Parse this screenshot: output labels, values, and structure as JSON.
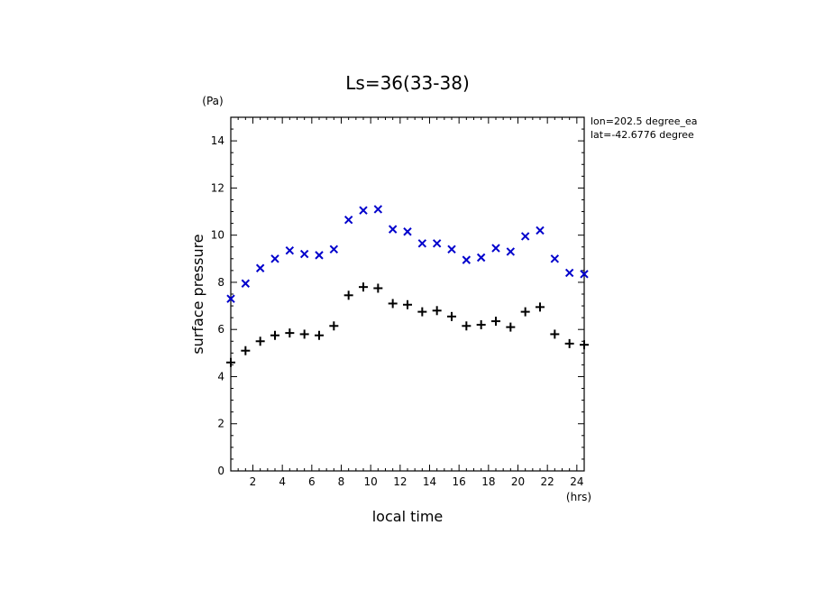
{
  "chart_data": {
    "type": "scatter",
    "title": "Ls=36(33-38)",
    "xlabel": "local time",
    "ylabel": "surface pressure",
    "x_unit": "(hrs)",
    "y_unit": "(Pa)",
    "xlim": [
      0.5,
      24.5
    ],
    "ylim": [
      0,
      15
    ],
    "x_ticks": [
      2,
      4,
      6,
      8,
      10,
      12,
      14,
      16,
      18,
      20,
      22,
      24
    ],
    "y_ticks": [
      0,
      2,
      4,
      6,
      8,
      10,
      12,
      14
    ],
    "grid": false,
    "annotations": [
      "lon=202.5 degree_ea",
      "lat=-42.6776 degree"
    ],
    "series": [
      {
        "marker": "x",
        "color": "#0000cc",
        "x": [
          0.5,
          1.5,
          2.5,
          3.5,
          4.5,
          5.5,
          6.5,
          7.5,
          8.5,
          9.5,
          10.5,
          11.5,
          12.5,
          13.5,
          14.5,
          15.5,
          16.5,
          17.5,
          18.5,
          19.5,
          20.5,
          21.5,
          22.5,
          23.5,
          24.5
        ],
        "y": [
          7.3,
          7.95,
          8.6,
          9.0,
          9.35,
          9.2,
          9.15,
          9.4,
          10.65,
          11.05,
          11.1,
          10.25,
          10.15,
          9.65,
          9.65,
          9.4,
          8.95,
          9.05,
          9.45,
          9.3,
          9.95,
          10.2,
          9.0,
          8.4,
          8.35
        ]
      },
      {
        "marker": "+",
        "color": "#000000",
        "x": [
          0.5,
          1.5,
          2.5,
          3.5,
          4.5,
          5.5,
          6.5,
          7.5,
          8.5,
          9.5,
          10.5,
          11.5,
          12.5,
          13.5,
          14.5,
          15.5,
          16.5,
          17.5,
          18.5,
          19.5,
          20.5,
          21.5,
          22.5,
          23.5,
          24.5
        ],
        "y": [
          4.6,
          5.1,
          5.5,
          5.75,
          5.85,
          5.8,
          5.75,
          6.15,
          7.45,
          7.8,
          7.75,
          7.1,
          7.05,
          6.75,
          6.8,
          6.55,
          6.15,
          6.2,
          6.35,
          6.1,
          6.75,
          6.95,
          5.8,
          5.4,
          5.35
        ]
      }
    ]
  }
}
